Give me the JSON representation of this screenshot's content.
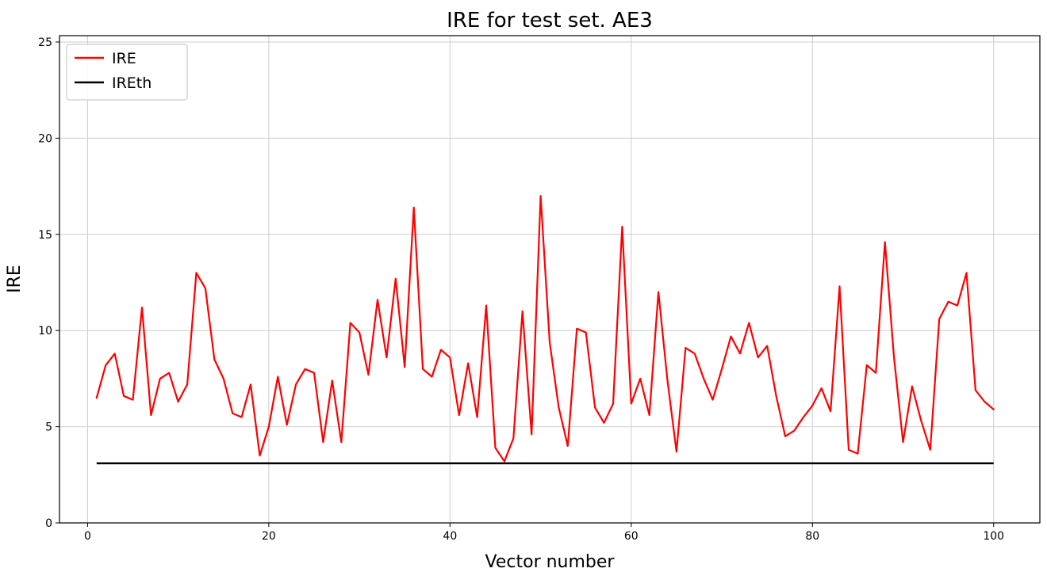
{
  "chart_data": {
    "type": "line",
    "title": "IRE for test set. AE3",
    "xlabel": "Vector number",
    "ylabel": "IRE",
    "xlim": [
      -3.1,
      105.1
    ],
    "ylim": [
      0,
      25.33
    ],
    "x_ticks": [
      0,
      20,
      40,
      60,
      80,
      100
    ],
    "y_ticks": [
      0,
      5,
      10,
      15,
      20,
      25
    ],
    "grid": true,
    "grid_color": "#cccccc",
    "legend_position": "upper-left",
    "series": [
      {
        "name": "IRE",
        "color": "#ff0000",
        "width": 2.2,
        "x_start": 1,
        "values": [
          6.5,
          8.2,
          8.8,
          6.6,
          6.4,
          11.2,
          5.6,
          7.5,
          7.8,
          6.3,
          7.2,
          13.0,
          12.2,
          8.5,
          7.5,
          5.7,
          5.5,
          7.2,
          3.5,
          5.0,
          7.6,
          5.1,
          7.2,
          8.0,
          7.8,
          4.2,
          7.4,
          4.2,
          10.4,
          9.9,
          7.7,
          11.6,
          8.6,
          12.7,
          8.1,
          16.4,
          8.0,
          7.6,
          9.0,
          8.6,
          5.6,
          8.3,
          5.5,
          11.3,
          3.9,
          3.2,
          4.4,
          11.0,
          4.6,
          17.0,
          9.4,
          6.0,
          4.0,
          10.1,
          9.9,
          6.0,
          5.2,
          6.2,
          15.4,
          6.2,
          7.5,
          5.6,
          12.0,
          7.4,
          3.7,
          9.1,
          8.8,
          7.5,
          6.4,
          8.0,
          9.7,
          8.8,
          10.4,
          8.6,
          9.2,
          6.6,
          4.5,
          4.8,
          5.5,
          6.1,
          7.0,
          5.8,
          12.3,
          3.8,
          3.6,
          8.2,
          7.8,
          14.6,
          8.6,
          4.2,
          7.1,
          5.3,
          3.8,
          10.6,
          11.5,
          11.3,
          13.0,
          6.9,
          6.3,
          5.9
        ]
      },
      {
        "name": "IREth",
        "color": "#000000",
        "width": 2.5,
        "constant": 3.1,
        "x_range": [
          1,
          100
        ]
      }
    ]
  }
}
